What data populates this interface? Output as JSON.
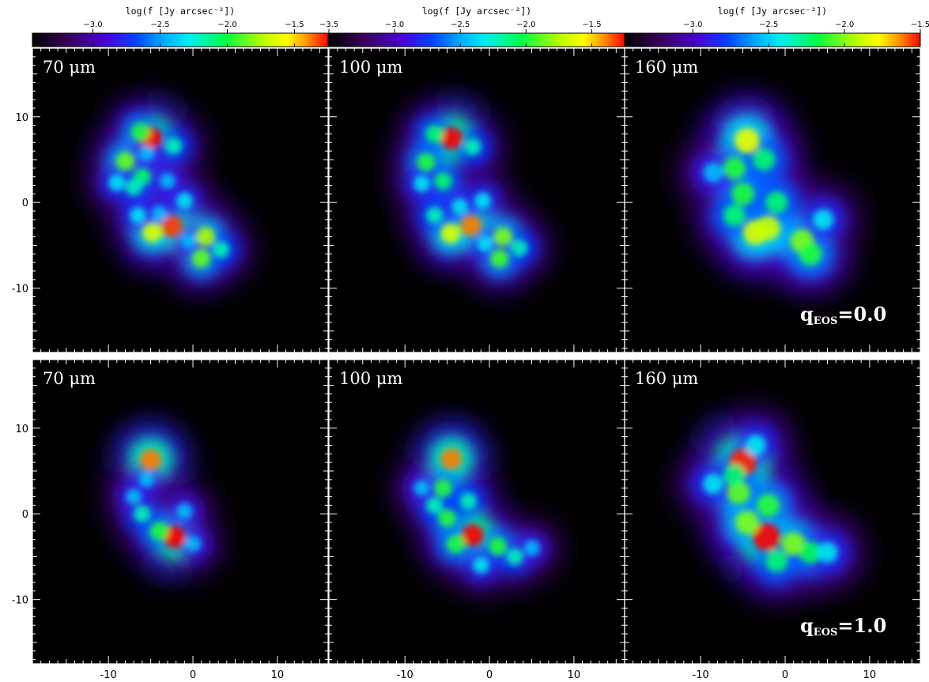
{
  "chart_data": {
    "type": "heatmap",
    "colormap": "rainbow (black-purple-blue-cyan-green-yellow-red)",
    "grid": false,
    "xlim": [
      -19,
      16
    ],
    "ylim": [
      -17.5,
      18
    ],
    "x_ticks": [
      -10,
      0,
      10
    ],
    "y_ticks": [
      10,
      0,
      -10
    ],
    "colorbars": [
      {
        "title": "log(f [Jy arcsec⁻²])",
        "range": [
          -3.45,
          -1.25
        ],
        "ticks": [
          -3.0,
          -2.5,
          -2.0,
          -1.5
        ],
        "tick_labels": [
          "−3.0",
          "−2.5",
          "−2.0",
          "−1.5"
        ]
      },
      {
        "title": "log(f [Jy arcsec⁻²])",
        "range": [
          -3.5,
          -1.25
        ],
        "ticks": [
          -3.5,
          -3.0,
          -2.5,
          -2.0,
          -1.5
        ],
        "tick_labels": [
          "−3.5",
          "−3.0",
          "−2.5",
          "−2.0",
          "−1.5"
        ]
      },
      {
        "title": "log(f [Jy arcsec⁻²])",
        "range": [
          -3.45,
          -1.5
        ],
        "ticks": [
          -3.0,
          -2.5,
          -2.0,
          -1.5
        ],
        "tick_labels": [
          "−3.0",
          "−2.5",
          "−2.0",
          "−1.5"
        ]
      }
    ],
    "rows": [
      {
        "q_label": {
          "main": "q",
          "sub": "EOS",
          "value": "=0.0"
        },
        "panels": [
          {
            "label": "70 μm",
            "emission": [
              {
                "x": -5,
                "y": 7.5,
                "level": 1.0
              },
              {
                "x": -2.5,
                "y": -2.8,
                "level": 0.95
              },
              {
                "x": -4.8,
                "y": -3.5,
                "level": 0.8
              },
              {
                "x": 1.5,
                "y": -4,
                "level": 0.75
              },
              {
                "x": 1,
                "y": -6.5,
                "level": 0.7
              },
              {
                "x": -8,
                "y": 4.8,
                "level": 0.7
              },
              {
                "x": -6.2,
                "y": 8.2,
                "level": 0.65
              },
              {
                "x": -6,
                "y": 3,
                "level": 0.6
              },
              {
                "x": -7,
                "y": 1.8,
                "level": 0.55
              },
              {
                "x": -9,
                "y": 2.3,
                "level": 0.5
              },
              {
                "x": -2.3,
                "y": 6.6,
                "level": 0.55
              },
              {
                "x": -1,
                "y": 0.2,
                "level": 0.5
              },
              {
                "x": 3.3,
                "y": -5.5,
                "level": 0.55
              },
              {
                "x": -6.5,
                "y": -1.5,
                "level": 0.5
              },
              {
                "x": -0.5,
                "y": -4.5,
                "level": 0.45
              },
              {
                "x": -3,
                "y": 2.5,
                "level": 0.45
              },
              {
                "x": -4,
                "y": -1.3,
                "level": 0.45
              },
              {
                "x": -5.5,
                "y": 5.7,
                "level": 0.45
              }
            ]
          },
          {
            "label": "100 μm",
            "emission": [
              {
                "x": -4.5,
                "y": 7.5,
                "level": 1.0
              },
              {
                "x": -2.2,
                "y": -2.7,
                "level": 0.92
              },
              {
                "x": -4.6,
                "y": -3.6,
                "level": 0.8
              },
              {
                "x": 1.6,
                "y": -4,
                "level": 0.72
              },
              {
                "x": 1.2,
                "y": -6.5,
                "level": 0.68
              },
              {
                "x": -7.5,
                "y": 4.7,
                "level": 0.65
              },
              {
                "x": -6.5,
                "y": 8,
                "level": 0.6
              },
              {
                "x": -5.5,
                "y": 2.5,
                "level": 0.6
              },
              {
                "x": -2,
                "y": 6.5,
                "level": 0.55
              },
              {
                "x": 3.5,
                "y": -5.3,
                "level": 0.55
              },
              {
                "x": -6.5,
                "y": -1.5,
                "level": 0.55
              },
              {
                "x": -0.8,
                "y": 0.2,
                "level": 0.5
              },
              {
                "x": -3.5,
                "y": -0.5,
                "level": 0.5
              },
              {
                "x": -8,
                "y": 2.2,
                "level": 0.5
              },
              {
                "x": -0.5,
                "y": -4.8,
                "level": 0.5
              }
            ]
          },
          {
            "label": "160 μm",
            "emission": [
              {
                "x": -4.5,
                "y": 7.2,
                "level": 0.82
              },
              {
                "x": -3.5,
                "y": -3.5,
                "level": 0.8
              },
              {
                "x": -2,
                "y": -3,
                "level": 0.78
              },
              {
                "x": 2,
                "y": -4.5,
                "level": 0.72
              },
              {
                "x": 3,
                "y": -6,
                "level": 0.65
              },
              {
                "x": -6,
                "y": 4,
                "level": 0.65
              },
              {
                "x": -5,
                "y": 1,
                "level": 0.65
              },
              {
                "x": -2.5,
                "y": 5,
                "level": 0.6
              },
              {
                "x": -1,
                "y": 0,
                "level": 0.6
              },
              {
                "x": -6,
                "y": -1.5,
                "level": 0.6
              },
              {
                "x": -8.5,
                "y": 3.5,
                "level": 0.45
              },
              {
                "x": 4.5,
                "y": -2,
                "level": 0.5
              }
            ]
          }
        ]
      },
      {
        "q_label": {
          "main": "q",
          "sub": "EOS",
          "value": "=1.0"
        },
        "panels": [
          {
            "label": "70 μm",
            "emission": [
              {
                "x": -2.2,
                "y": -2.7,
                "level": 1.0
              },
              {
                "x": -5,
                "y": 6.3,
                "level": 0.92
              },
              {
                "x": -4,
                "y": -2,
                "level": 0.65
              },
              {
                "x": -6,
                "y": 0,
                "level": 0.55
              },
              {
                "x": -7,
                "y": 2,
                "level": 0.45
              },
              {
                "x": -5.5,
                "y": 4,
                "level": 0.45
              },
              {
                "x": -1,
                "y": 0.3,
                "level": 0.45
              },
              {
                "x": 0,
                "y": -3.5,
                "level": 0.45
              }
            ]
          },
          {
            "label": "100 μm",
            "emission": [
              {
                "x": -2,
                "y": -2.5,
                "level": 1.0
              },
              {
                "x": -4.5,
                "y": 6.4,
                "level": 0.92
              },
              {
                "x": -5.5,
                "y": 3,
                "level": 0.65
              },
              {
                "x": -5,
                "y": -0.5,
                "level": 0.65
              },
              {
                "x": -4,
                "y": -3.5,
                "level": 0.65
              },
              {
                "x": 1,
                "y": -3.8,
                "level": 0.65
              },
              {
                "x": -6.5,
                "y": 1,
                "level": 0.55
              },
              {
                "x": 3,
                "y": -5,
                "level": 0.55
              },
              {
                "x": -2.5,
                "y": 1.5,
                "level": 0.55
              },
              {
                "x": -1,
                "y": -6,
                "level": 0.5
              },
              {
                "x": -8,
                "y": 3,
                "level": 0.45
              },
              {
                "x": 5,
                "y": -4,
                "level": 0.45
              }
            ]
          },
          {
            "label": "160 μm",
            "emission": [
              {
                "x": -2.2,
                "y": -2.7,
                "level": 1.0
              },
              {
                "x": -5,
                "y": 6,
                "level": 0.96
              },
              {
                "x": -5.5,
                "y": 2.5,
                "level": 0.7
              },
              {
                "x": -4.5,
                "y": -1,
                "level": 0.72
              },
              {
                "x": 1,
                "y": -3.5,
                "level": 0.72
              },
              {
                "x": 3,
                "y": -4.5,
                "level": 0.62
              },
              {
                "x": -2,
                "y": 1,
                "level": 0.66
              },
              {
                "x": -6,
                "y": 4.5,
                "level": 0.6
              },
              {
                "x": -1,
                "y": -5.5,
                "level": 0.6
              },
              {
                "x": -8.5,
                "y": 3.5,
                "level": 0.5
              },
              {
                "x": 5,
                "y": -4.5,
                "level": 0.5
              },
              {
                "x": -3.5,
                "y": 8,
                "level": 0.5
              }
            ]
          }
        ]
      }
    ]
  }
}
